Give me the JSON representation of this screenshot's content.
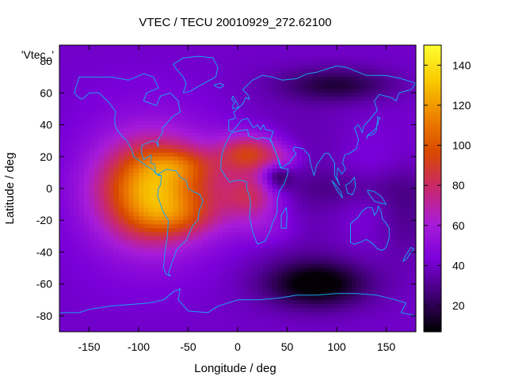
{
  "chart_data": {
    "type": "heatmap",
    "title": "VTEC / TECU 20010929_272.62100",
    "xlabel": "Longitude / deg",
    "ylabel": "Latitude / deg",
    "xlim": [
      -180,
      180
    ],
    "ylim": [
      -90,
      90
    ],
    "x_ticks": [
      -150,
      -100,
      -50,
      0,
      50,
      100,
      150
    ],
    "y_ticks": [
      60,
      40,
      20,
      0,
      -20,
      -40,
      -60,
      -80
    ],
    "y_top_tick_label": "80",
    "series_label": "'Vtec_'",
    "colorbar": {
      "range": [
        7,
        150
      ],
      "ticks": [
        20,
        40,
        60,
        80,
        100,
        120,
        140
      ],
      "palette": [
        "#000000",
        "#3d006f",
        "#7a00d9",
        "#a71cd9",
        "#c8286e",
        "#d84800",
        "#ee8300",
        "#f8c900",
        "#ffff33"
      ]
    },
    "field_features": [
      {
        "kind": "peak",
        "lon": -75,
        "lat": 2,
        "value": 145
      },
      {
        "kind": "crest",
        "lon": -60,
        "lat": 15,
        "value": 100
      },
      {
        "kind": "crest",
        "lon": -60,
        "lat": -18,
        "value": 98
      },
      {
        "kind": "crest",
        "lon": 15,
        "lat": 22,
        "value": 92
      },
      {
        "kind": "crest",
        "lon": 20,
        "lat": -5,
        "value": 80
      },
      {
        "kind": "trough",
        "lon": 80,
        "lat": -60,
        "value": 8
      },
      {
        "kind": "trough",
        "lon": 100,
        "lat": 65,
        "value": 20
      }
    ]
  }
}
